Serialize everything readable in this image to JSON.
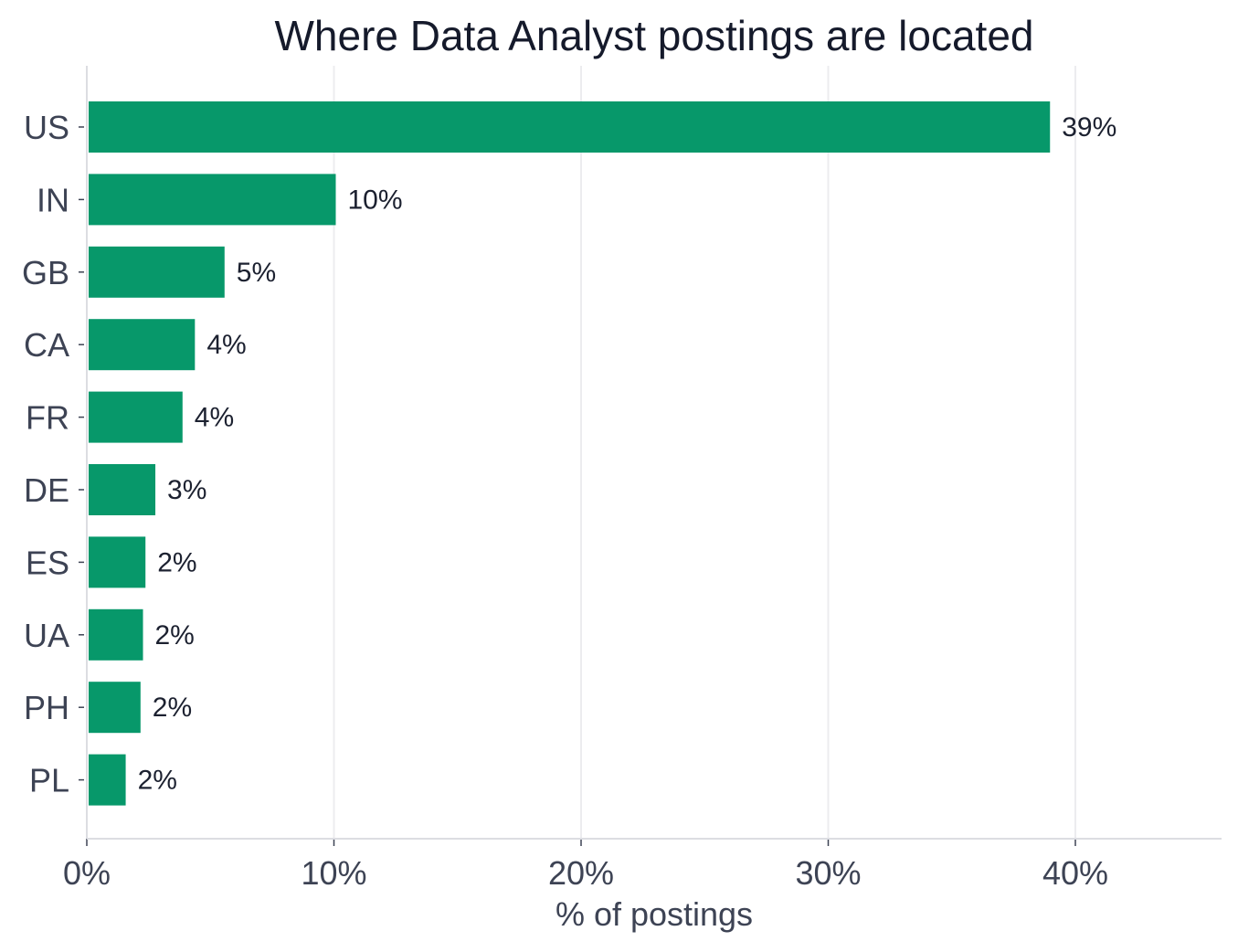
{
  "chart_data": {
    "type": "bar",
    "orientation": "horizontal",
    "title": "Where Data Analyst postings are located",
    "xlabel": "% of postings",
    "ylabel": "",
    "categories": [
      "US",
      "IN",
      "GB",
      "CA",
      "FR",
      "DE",
      "ES",
      "UA",
      "PH",
      "PL"
    ],
    "values": [
      38.9,
      10.0,
      5.5,
      4.3,
      3.8,
      2.7,
      2.3,
      2.2,
      2.1,
      1.5
    ],
    "data_labels": [
      "39%",
      "10%",
      "5%",
      "4%",
      "4%",
      "3%",
      "2%",
      "2%",
      "2%",
      "2%"
    ],
    "xlim": [
      0,
      46
    ],
    "x_ticks": [
      0,
      10,
      20,
      30,
      40
    ],
    "x_tick_labels": [
      "0%",
      "10%",
      "20%",
      "30%",
      "40%"
    ],
    "grid": "vertical",
    "bar_color": "#07986a",
    "grid_color": "#ececef",
    "axis_color": "#dcdde2"
  }
}
